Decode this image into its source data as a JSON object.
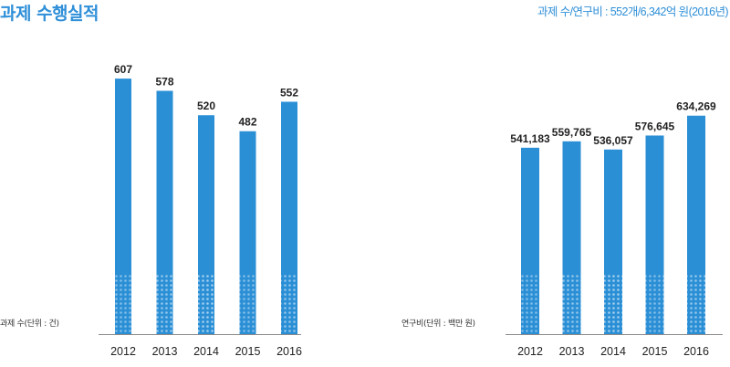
{
  "header": {
    "title": "과제 수행실적",
    "summary": "과제 수/연구비 : 552개/6,342억 원(2016년)"
  },
  "colors": {
    "bar": "#2b8fd6",
    "title": "#2f8fd8",
    "axis": "#8a8a8a"
  },
  "chart_data": [
    {
      "type": "bar",
      "title": "",
      "xlabel": "",
      "ylabel": "과제 수(단위 : 건)",
      "categories": [
        "2012",
        "2013",
        "2014",
        "2015",
        "2016"
      ],
      "values": [
        607,
        578,
        520,
        482,
        552
      ],
      "value_labels": [
        "607",
        "578",
        "520",
        "482",
        "552"
      ],
      "ylim": [
        0,
        720
      ],
      "grid": false,
      "legend": "none"
    },
    {
      "type": "bar",
      "title": "",
      "xlabel": "",
      "ylabel": "연구비(단위 : 백만 원)",
      "categories": [
        "2012",
        "2013",
        "2014",
        "2015",
        "2016"
      ],
      "values": [
        541183,
        559765,
        536057,
        576645,
        634269
      ],
      "value_labels": [
        "541,183",
        "559,765",
        "536,057",
        "576,645",
        "634,269"
      ],
      "ylim": [
        0,
        880000
      ],
      "grid": false,
      "legend": "none"
    }
  ]
}
